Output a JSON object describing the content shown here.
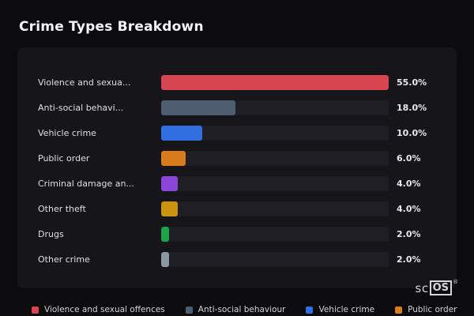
{
  "title": "Crime Types Breakdown",
  "chart_data": {
    "type": "bar",
    "orientation": "horizontal",
    "title": "Crime Types Breakdown",
    "categories": [
      "Violence and sexua...",
      "Anti-social behavi...",
      "Vehicle crime",
      "Public order",
      "Criminal damage an...",
      "Other theft",
      "Drugs",
      "Other crime"
    ],
    "values": [
      55.0,
      18.0,
      10.0,
      6.0,
      4.0,
      4.0,
      2.0,
      2.0
    ],
    "value_labels": [
      "55.0%",
      "18.0%",
      "10.0%",
      "6.0%",
      "4.0%",
      "4.0%",
      "2.0%",
      "2.0%"
    ],
    "bar_colors": [
      "#d64550",
      "#4f5d70",
      "#2f6fe0",
      "#d97c1e",
      "#8b48d8",
      "#c9940f",
      "#1fa348",
      "#8d97a2"
    ],
    "scale_max": 55.0,
    "grid": false,
    "legend_position": "bottom"
  },
  "legend": [
    {
      "label": "Violence and sexual offences",
      "color": "#d64550"
    },
    {
      "label": "Anti-social behaviour",
      "color": "#4f5d70"
    },
    {
      "label": "Vehicle crime",
      "color": "#2f6fe0"
    },
    {
      "label": "Public order",
      "color": "#d97c1e"
    }
  ],
  "colors": {
    "background": "#0c0c0e",
    "card": "#15151a",
    "track": "#1e1e24"
  },
  "watermark": {
    "prefix": "sc",
    "boxed": "OS",
    "reg": "®"
  }
}
